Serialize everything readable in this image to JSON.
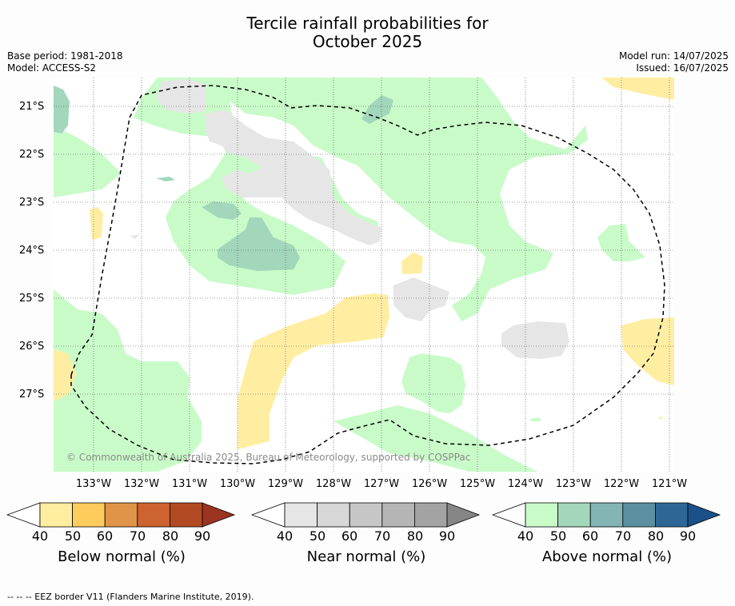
{
  "title": "Tercile rainfall probabilities for\nOctober 2025",
  "title_line1": "Tercile rainfall probabilities for",
  "title_line2": "October 2025",
  "meta_left": {
    "base_period": "Base period: 1981-2018",
    "model": "Model: ACCESS-S2"
  },
  "meta_right": {
    "model_run": "Model run: 14/07/2025",
    "issued": "Issued: 16/07/2025"
  },
  "map": {
    "lat_labels": [
      "21°S",
      "22°S",
      "23°S",
      "24°S",
      "25°S",
      "26°S",
      "27°S"
    ],
    "lon_labels": [
      "133°W",
      "132°W",
      "131°W",
      "130°W",
      "129°W",
      "128°W",
      "127°W",
      "126°W",
      "125°W",
      "124°W",
      "123°W",
      "122°W",
      "121°W"
    ],
    "copyright": "© Commonwealth of Australia 2025, Bureau of Meteorology, supported by COSPPac",
    "colors": {
      "above_40": "#c9fbc9",
      "above_50": "#a2d7bb",
      "near_40": "#e6e6e6",
      "below_40": "#ffeea2",
      "eez_border": "#000000"
    }
  },
  "colorbars": [
    {
      "title": "Below normal (%)",
      "ticks": [
        "40",
        "50",
        "60",
        "70",
        "80",
        "90"
      ],
      "colors": [
        "#ffffff",
        "#ffeda0",
        "#fecc5c",
        "#e09447",
        "#cc6331",
        "#b24a24",
        "#9b3420"
      ]
    },
    {
      "title": "Near normal (%)",
      "ticks": [
        "40",
        "50",
        "60",
        "70",
        "80",
        "90"
      ],
      "colors": [
        "#ffffff",
        "#e6e6e6",
        "#d7d7d7",
        "#c6c6c6",
        "#b5b5b5",
        "#a3a3a3",
        "#868686"
      ]
    },
    {
      "title": "Above normal (%)",
      "ticks": [
        "40",
        "50",
        "60",
        "70",
        "80",
        "90"
      ],
      "colors": [
        "#ffffff",
        "#c9fbc9",
        "#a2d7bb",
        "#82b5b3",
        "#5a90a0",
        "#2e6696",
        "#1b5088"
      ]
    }
  ],
  "footnote": "--  --  -- EEZ border V11 (Flanders Marine Institute, 2019)."
}
